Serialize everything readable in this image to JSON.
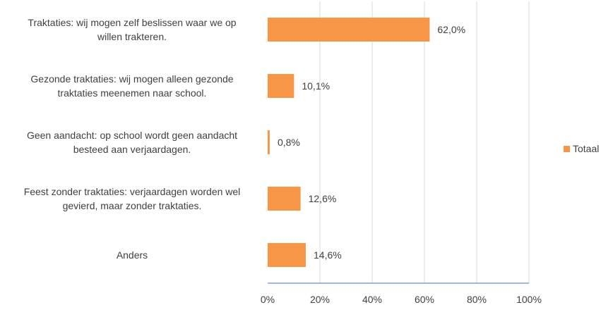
{
  "chart_data": {
    "type": "bar",
    "orientation": "horizontal",
    "categories": [
      [
        "Traktaties: wij mogen zelf beslissen waar we op",
        "willen trakteren."
      ],
      [
        "Gezonde traktaties: wij mogen alleen gezonde",
        "traktaties meenemen naar school."
      ],
      [
        "Geen aandacht: op school wordt geen aandacht",
        "besteed aan verjaardagen."
      ],
      [
        "Feest zonder traktaties: verjaardagen worden wel",
        "gevierd, maar zonder traktaties."
      ],
      [
        "Anders"
      ]
    ],
    "series": [
      {
        "name": "Totaal",
        "color": "#F79646",
        "values": [
          62.0,
          10.1,
          0.8,
          12.6,
          14.6
        ],
        "data_labels": [
          "62,0%",
          "10,1%",
          "0,8%",
          "12,6%",
          "14,6%"
        ]
      }
    ],
    "xlim": [
      0,
      100
    ],
    "x_ticks": [
      "0%",
      "20%",
      "40%",
      "60%",
      "80%",
      "100%"
    ],
    "grid": true,
    "legend_position": "right",
    "title": "",
    "xlabel": "",
    "ylabel": ""
  }
}
